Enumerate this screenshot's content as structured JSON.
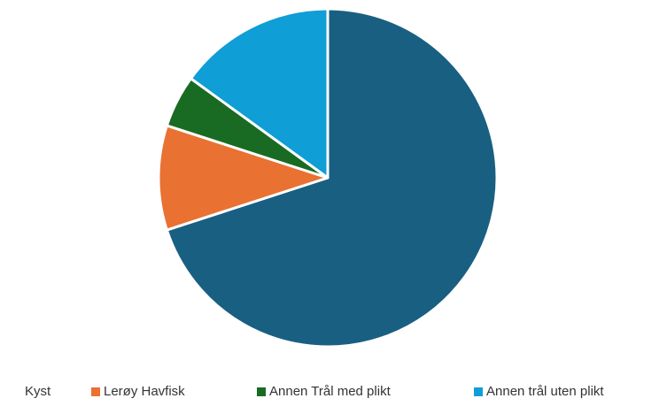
{
  "chart_data": {
    "type": "pie",
    "categories": [
      "Kyst",
      "Lerøy Havfisk",
      "Annen Trål med plikt",
      "Annen trål uten plikt"
    ],
    "values": [
      70,
      10,
      5,
      15
    ],
    "colors": [
      "#195f81",
      "#e97132",
      "#196b24",
      "#0f9ed5"
    ],
    "legend": "bottom"
  }
}
